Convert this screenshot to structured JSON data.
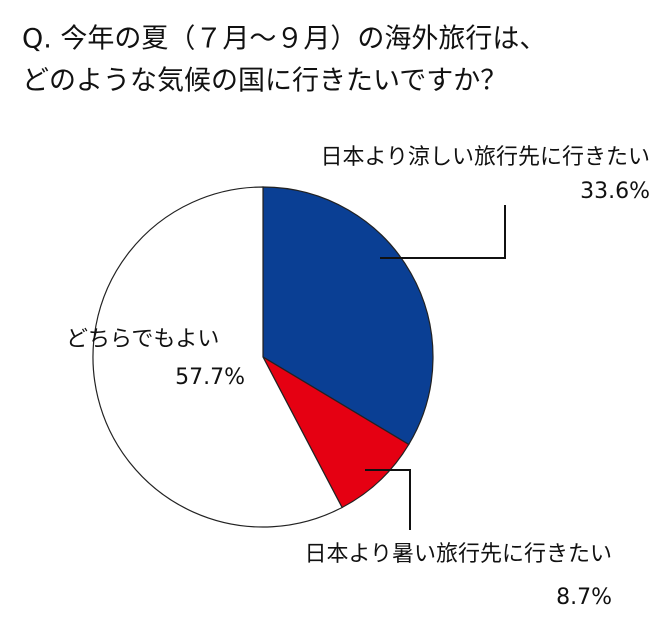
{
  "chart_data": {
    "type": "pie",
    "title": [
      "Q. 今年の夏（７月～９月）の海外旅行は、",
      "どのような気候の国に行きたいですか？"
    ],
    "categories": [
      "日本より涼しい旅行先に行きたい",
      "日本より暑い旅行先に行きたい",
      "どちらでもよい"
    ],
    "values": [
      33.6,
      8.7,
      57.7
    ],
    "value_labels": [
      "33.6%",
      "8.7%",
      "57.7%"
    ],
    "colors": [
      "#0a3f94",
      "#e50012",
      "#ffffff"
    ]
  }
}
